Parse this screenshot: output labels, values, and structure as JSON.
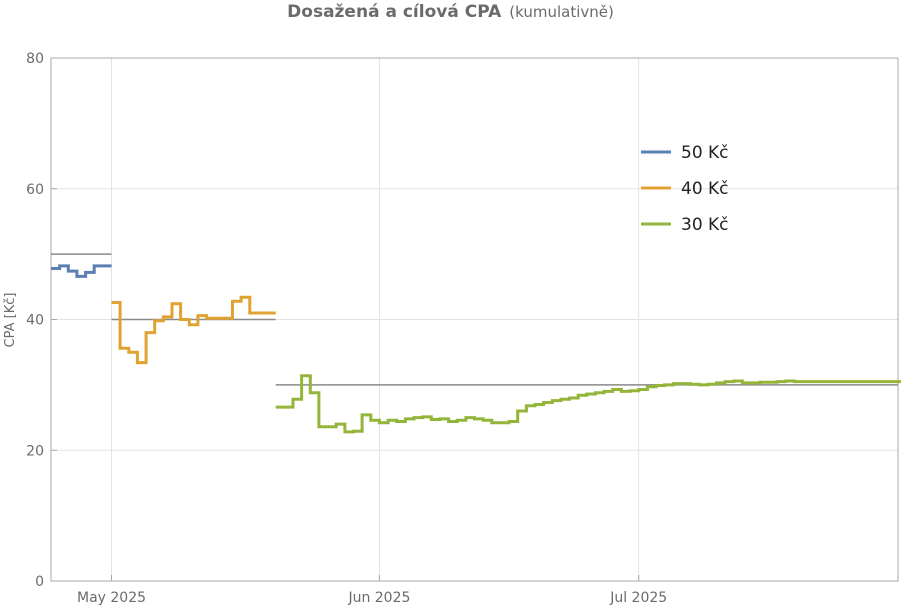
{
  "chart_data": {
    "type": "line",
    "title": "Dosažená a cílová CPA",
    "subtitle": "(kumulativně)",
    "ylabel": "CPA [Kč]",
    "ylim": [
      0,
      80
    ],
    "yticks": [
      0,
      20,
      40,
      60,
      80
    ],
    "xlim": [
      "2025-04-24",
      "2025-07-31"
    ],
    "xticks": [
      {
        "date": "2025-05-01",
        "label": "May 2025"
      },
      {
        "date": "2025-06-01",
        "label": "Jun 2025"
      },
      {
        "date": "2025-07-01",
        "label": "Jul 2025"
      }
    ],
    "grid": true,
    "legend_position": "upper-right",
    "step_chart": true,
    "targets": [
      {
        "value": 50,
        "start": "2025-04-24",
        "end": "2025-05-01",
        "color": "#8a8a8a"
      },
      {
        "value": 40,
        "start": "2025-05-01",
        "end": "2025-05-20",
        "color": "#8a8a8a"
      },
      {
        "value": 30,
        "start": "2025-05-20",
        "end": "2025-07-31",
        "color": "#8a8a8a"
      }
    ],
    "series": [
      {
        "name": "50 Kč",
        "color": "#5b7fb0",
        "x": [
          "2025-04-24",
          "2025-04-25",
          "2025-04-26",
          "2025-04-27",
          "2025-04-28",
          "2025-04-29",
          "2025-04-30"
        ],
        "y": [
          47.8,
          48.2,
          47.4,
          46.6,
          47.2,
          48.2,
          48.2
        ]
      },
      {
        "name": "40 Kč",
        "color": "#e0a332",
        "x": [
          "2025-05-01",
          "2025-05-02",
          "2025-05-03",
          "2025-05-04",
          "2025-05-05",
          "2025-05-06",
          "2025-05-07",
          "2025-05-08",
          "2025-05-09",
          "2025-05-10",
          "2025-05-11",
          "2025-05-12",
          "2025-05-13",
          "2025-05-14",
          "2025-05-15",
          "2025-05-16",
          "2025-05-17",
          "2025-05-18",
          "2025-05-19"
        ],
        "y": [
          42.6,
          35.6,
          35.0,
          33.4,
          38.0,
          39.8,
          40.4,
          42.4,
          40.0,
          39.2,
          40.6,
          40.2,
          40.2,
          40.2,
          42.8,
          43.4,
          41.0,
          41.0,
          41.0
        ]
      },
      {
        "name": "30 Kč",
        "color": "#93b53a",
        "x": [
          "2025-05-20",
          "2025-05-21",
          "2025-05-22",
          "2025-05-23",
          "2025-05-24",
          "2025-05-25",
          "2025-05-26",
          "2025-05-27",
          "2025-05-28",
          "2025-05-29",
          "2025-05-30",
          "2025-05-31",
          "2025-06-01",
          "2025-06-02",
          "2025-06-03",
          "2025-06-04",
          "2025-06-05",
          "2025-06-06",
          "2025-06-07",
          "2025-06-08",
          "2025-06-09",
          "2025-06-10",
          "2025-06-11",
          "2025-06-12",
          "2025-06-13",
          "2025-06-14",
          "2025-06-15",
          "2025-06-16",
          "2025-06-17",
          "2025-06-18",
          "2025-06-19",
          "2025-06-20",
          "2025-06-21",
          "2025-06-22",
          "2025-06-23",
          "2025-06-24",
          "2025-06-25",
          "2025-06-26",
          "2025-06-27",
          "2025-06-28",
          "2025-06-29",
          "2025-06-30",
          "2025-07-01",
          "2025-07-02",
          "2025-07-03",
          "2025-07-04",
          "2025-07-05",
          "2025-07-06",
          "2025-07-07",
          "2025-07-08",
          "2025-07-09",
          "2025-07-10",
          "2025-07-11",
          "2025-07-12",
          "2025-07-13",
          "2025-07-14",
          "2025-07-15",
          "2025-07-16",
          "2025-07-17",
          "2025-07-18",
          "2025-07-19",
          "2025-07-20",
          "2025-07-21",
          "2025-07-22",
          "2025-07-23",
          "2025-07-24",
          "2025-07-25",
          "2025-07-26",
          "2025-07-27",
          "2025-07-28",
          "2025-07-29",
          "2025-07-30",
          "2025-07-31"
        ],
        "y": [
          26.6,
          26.6,
          27.8,
          31.4,
          28.8,
          23.6,
          23.6,
          24.0,
          22.8,
          22.9,
          25.4,
          24.6,
          24.2,
          24.6,
          24.4,
          24.8,
          25.0,
          25.1,
          24.7,
          24.8,
          24.4,
          24.6,
          25.0,
          24.8,
          24.6,
          24.2,
          24.2,
          24.4,
          26.0,
          26.8,
          27.0,
          27.3,
          27.6,
          27.8,
          28.0,
          28.4,
          28.6,
          28.8,
          29.0,
          29.3,
          29.0,
          29.1,
          29.3,
          29.7,
          29.9,
          30.0,
          30.2,
          30.2,
          30.1,
          30.0,
          30.1,
          30.3,
          30.5,
          30.6,
          30.3,
          30.3,
          30.4,
          30.4,
          30.5,
          30.6,
          30.5,
          30.5,
          30.5,
          30.5,
          30.5,
          30.5,
          30.5,
          30.5,
          30.5,
          30.5,
          30.5,
          30.5,
          30.5
        ]
      }
    ]
  }
}
